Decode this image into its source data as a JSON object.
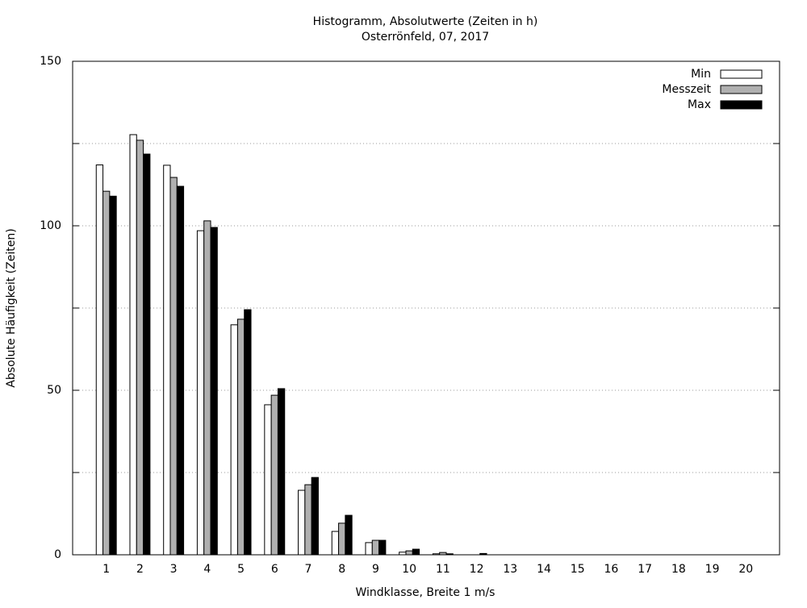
{
  "chart_data": {
    "type": "bar",
    "title": "Histogramm, Absolutwerte (Zeiten in h)",
    "subtitle": "Osterrönfeld, 07, 2017",
    "x_label": "Windklasse, Breite 1 m/s",
    "y_label": "Absolute Häufigkeit (Zeiten)",
    "categories": [
      "1",
      "2",
      "3",
      "4",
      "5",
      "6",
      "7",
      "8",
      "9",
      "10",
      "11",
      "12",
      "13",
      "14",
      "15",
      "16",
      "17",
      "18",
      "19",
      "20"
    ],
    "series": [
      {
        "name": "Min",
        "color": "#ffffff",
        "values": [
          118.5,
          127.7,
          118.4,
          98.5,
          69.9,
          45.6,
          19.6,
          7.1,
          3.7,
          0.8,
          0.3,
          0,
          0,
          0,
          0,
          0,
          0,
          0,
          0,
          0
        ]
      },
      {
        "name": "Messzeit",
        "color": "#b0b0b0",
        "values": [
          110.5,
          126,
          114.7,
          101.5,
          71.6,
          48.5,
          21.3,
          9.6,
          4.4,
          1.2,
          0.7,
          0,
          0,
          0,
          0,
          0,
          0,
          0,
          0,
          0
        ]
      },
      {
        "name": "Max",
        "color": "#000000",
        "values": [
          109,
          121.8,
          112,
          99.5,
          74.5,
          50.5,
          23.5,
          12,
          4.4,
          1.7,
          0.3,
          0.4,
          0,
          0,
          0,
          0,
          0,
          0,
          0,
          0
        ]
      }
    ],
    "ylim": [
      0,
      150
    ],
    "yticks": [
      0,
      50,
      100,
      150
    ],
    "yminor_ticks": [
      25,
      75,
      125
    ],
    "grid": true,
    "legend": "top-right"
  }
}
